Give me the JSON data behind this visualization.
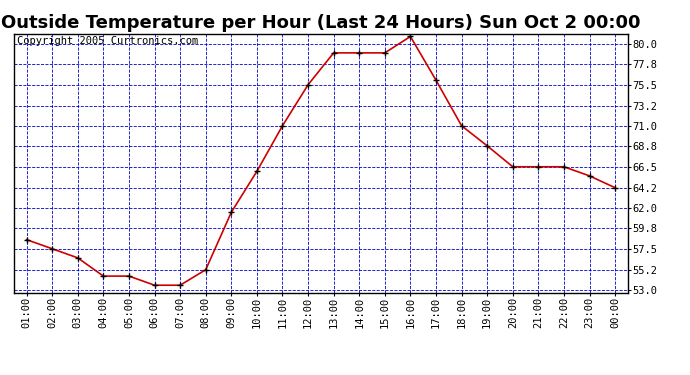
{
  "title": "Outside Temperature per Hour (Last 24 Hours) Sun Oct 2 00:00",
  "copyright": "Copyright 2005 Curtronics.com",
  "hours": [
    "01:00",
    "02:00",
    "03:00",
    "04:00",
    "05:00",
    "06:00",
    "07:00",
    "08:00",
    "09:00",
    "10:00",
    "11:00",
    "12:00",
    "13:00",
    "14:00",
    "15:00",
    "16:00",
    "17:00",
    "18:00",
    "19:00",
    "20:00",
    "21:00",
    "22:00",
    "23:00",
    "00:00"
  ],
  "temps": [
    58.5,
    57.5,
    56.5,
    54.5,
    54.5,
    53.5,
    53.5,
    55.2,
    61.5,
    66.0,
    71.0,
    75.5,
    79.0,
    79.0,
    79.0,
    80.8,
    76.0,
    71.0,
    68.8,
    66.5,
    66.5,
    66.5,
    65.5,
    64.2
  ],
  "line_color": "#cc0000",
  "marker_color": "#000000",
  "fig_bg_color": "#ffffff",
  "plot_bg_color": "#ffffff",
  "grid_color": "#0000cc",
  "title_color": "#000000",
  "border_color": "#000000",
  "ylim_min": 53.0,
  "ylim_max": 80.8,
  "yticks": [
    53.0,
    55.2,
    57.5,
    59.8,
    62.0,
    64.2,
    66.5,
    68.8,
    71.0,
    73.2,
    75.5,
    77.8,
    80.0
  ],
  "title_fontsize": 13,
  "copyright_fontsize": 7.5,
  "tick_fontsize": 7.5
}
